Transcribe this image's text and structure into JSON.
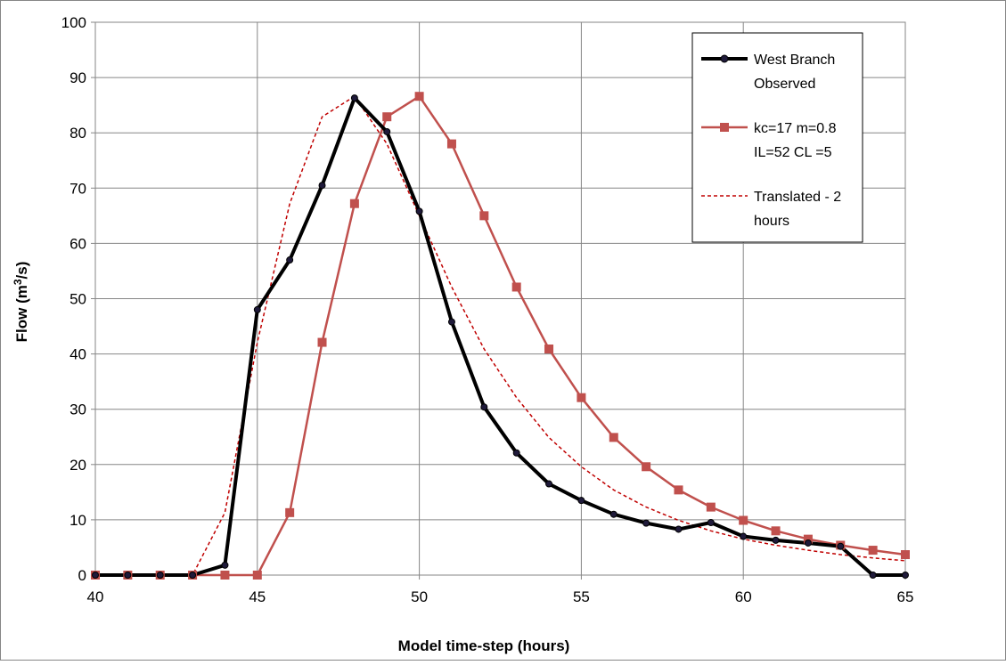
{
  "chart_data": {
    "type": "line",
    "xlabel": "Model time-step (hours)",
    "ylabel_main": "Flow (m",
    "ylabel_sup": "3",
    "ylabel_tail": "/s)",
    "xlim": [
      40,
      65
    ],
    "ylim": [
      0,
      100
    ],
    "x_ticks": [
      40,
      45,
      50,
      55,
      60,
      65
    ],
    "y_ticks": [
      0,
      10,
      20,
      30,
      40,
      50,
      60,
      70,
      80,
      90,
      100
    ],
    "grid": true,
    "legend_position": "top-right",
    "series": [
      {
        "name_lines": [
          "West Branch",
          "Observed"
        ],
        "color": "#000000",
        "style": "solid-thick",
        "marker": "circle",
        "points": [
          [
            40,
            0
          ],
          [
            41,
            0
          ],
          [
            42,
            0
          ],
          [
            43,
            0
          ],
          [
            44,
            1.8
          ],
          [
            45,
            48
          ],
          [
            46,
            57
          ],
          [
            47,
            70.5
          ],
          [
            48,
            86.3
          ],
          [
            49,
            80.2
          ],
          [
            50,
            65.8
          ],
          [
            51,
            45.8
          ],
          [
            52,
            30.4
          ],
          [
            53,
            22.1
          ],
          [
            54,
            16.5
          ],
          [
            55,
            13.5
          ],
          [
            56,
            11
          ],
          [
            57,
            9.4
          ],
          [
            58,
            8.3
          ],
          [
            59,
            9.5
          ],
          [
            60,
            7
          ],
          [
            61,
            6.3
          ],
          [
            62,
            5.8
          ],
          [
            63,
            5.2
          ],
          [
            64,
            0
          ],
          [
            65,
            0
          ]
        ]
      },
      {
        "name_lines": [
          "kc=17 m=0.8",
          "IL=52 CL =5"
        ],
        "color": "#c0504d",
        "style": "solid",
        "marker": "square",
        "points": [
          [
            40,
            0
          ],
          [
            41,
            0
          ],
          [
            42,
            0
          ],
          [
            43,
            0
          ],
          [
            44,
            0
          ],
          [
            45,
            0
          ],
          [
            46,
            11.3
          ],
          [
            47,
            42.1
          ],
          [
            48,
            67.2
          ],
          [
            49,
            82.9
          ],
          [
            50,
            86.6
          ],
          [
            51,
            78
          ],
          [
            52,
            65
          ],
          [
            53,
            52.1
          ],
          [
            54,
            40.9
          ],
          [
            55,
            32.1
          ],
          [
            56,
            24.9
          ],
          [
            57,
            19.6
          ],
          [
            58,
            15.4
          ],
          [
            59,
            12.3
          ],
          [
            60,
            9.9
          ],
          [
            61,
            8
          ],
          [
            62,
            6.5
          ],
          [
            63,
            5.4
          ],
          [
            64,
            4.5
          ],
          [
            65,
            3.7
          ]
        ]
      },
      {
        "name_lines": [
          "Translated - 2",
          "hours"
        ],
        "color": "#c00000",
        "style": "dashed",
        "marker": "none",
        "points": [
          [
            40,
            0
          ],
          [
            41,
            0
          ],
          [
            42,
            0
          ],
          [
            43,
            0
          ],
          [
            44,
            11.3
          ],
          [
            45,
            42.1
          ],
          [
            46,
            67.2
          ],
          [
            47,
            82.9
          ],
          [
            48,
            86.6
          ],
          [
            49,
            78
          ],
          [
            50,
            65
          ],
          [
            51,
            52.1
          ],
          [
            52,
            40.9
          ],
          [
            53,
            32.1
          ],
          [
            54,
            24.9
          ],
          [
            55,
            19.6
          ],
          [
            56,
            15.4
          ],
          [
            57,
            12.3
          ],
          [
            58,
            9.9
          ],
          [
            59,
            8
          ],
          [
            60,
            6.5
          ],
          [
            61,
            5.4
          ],
          [
            62,
            4.5
          ],
          [
            63,
            3.7
          ],
          [
            64,
            3.1
          ],
          [
            65,
            2.6
          ]
        ]
      }
    ]
  }
}
